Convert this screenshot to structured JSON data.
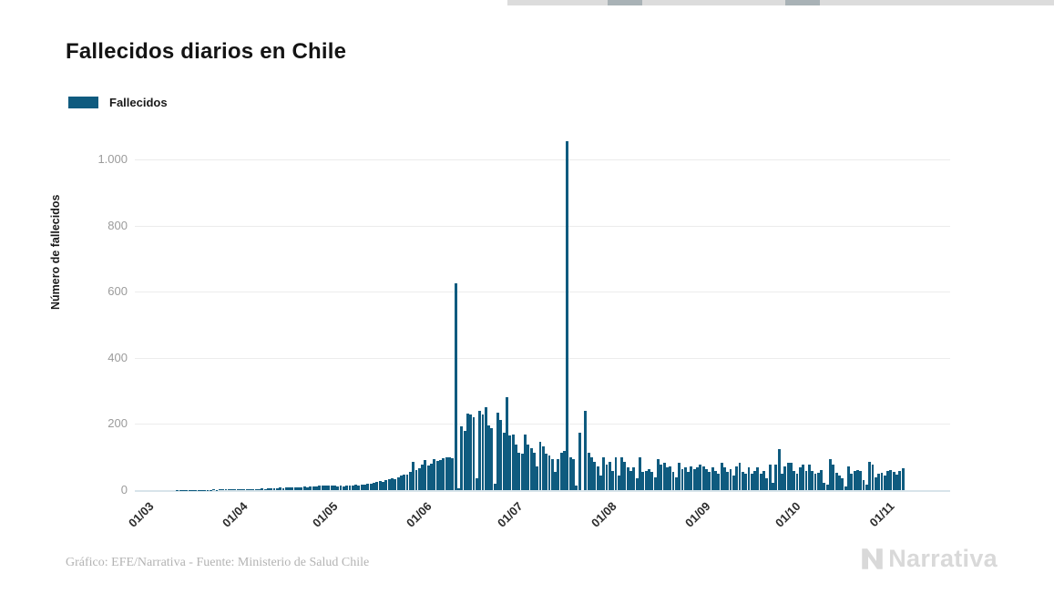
{
  "page": {
    "title": "Fallecidos diarios en Chile",
    "footer_credit": "Gráfico: EFE/Narrativa - Fuente: Ministerio de Salud Chile",
    "brand": "Narrativa"
  },
  "legend": {
    "label": "Fallecidos",
    "color": "#0f5b7f"
  },
  "chart_data": {
    "type": "bar",
    "title": "Fallecidos diarios en Chile",
    "series_name": "Fallecidos",
    "xlabel": "",
    "ylabel": "Número de fallecidos",
    "bar_color": "#0f5b7f",
    "grid": true,
    "legend_position": "top-left",
    "ylim": [
      0,
      1075
    ],
    "yticks": [
      0,
      200,
      400,
      600,
      800,
      1000
    ],
    "ytick_labels": [
      "0",
      "200",
      "400",
      "600",
      "800",
      "1.000"
    ],
    "x_tick_labels": [
      "01/03",
      "01/04",
      "01/05",
      "01/06",
      "01/07",
      "01/08",
      "01/09",
      "01/10",
      "01/11"
    ],
    "x_tick_day_index": [
      0,
      31,
      61,
      92,
      122,
      153,
      184,
      214,
      245
    ],
    "x_start_label": "01/03",
    "values": [
      0,
      0,
      0,
      0,
      0,
      0,
      0,
      0,
      0,
      1,
      1,
      1,
      1,
      1,
      1,
      1,
      1,
      1,
      1,
      1,
      1,
      2,
      1,
      2,
      2,
      2,
      2,
      3,
      2,
      2,
      3,
      3,
      2,
      3,
      4,
      3,
      4,
      5,
      4,
      5,
      6,
      5,
      6,
      7,
      6,
      7,
      8,
      7,
      8,
      9,
      8,
      11,
      9,
      10,
      11,
      12,
      13,
      14,
      13,
      15,
      14,
      13,
      12,
      14,
      12,
      13,
      14,
      15,
      16,
      15,
      17,
      16,
      18,
      20,
      23,
      25,
      27,
      26,
      29,
      32,
      35,
      33,
      38,
      43,
      48,
      46,
      55,
      86,
      60,
      66,
      78,
      90,
      75,
      81,
      95,
      88,
      92,
      96,
      98,
      100,
      96,
      627,
      5,
      192,
      179,
      231,
      228,
      220,
      35,
      239,
      229,
      252,
      197,
      188,
      18,
      234,
      211,
      174,
      280,
      165,
      168,
      138,
      113,
      109,
      169,
      137,
      128,
      114,
      72,
      146,
      132,
      109,
      105,
      95,
      54,
      95,
      114,
      118,
      1057,
      100,
      95,
      13,
      173,
      0,
      240,
      114,
      100,
      86,
      72,
      45,
      100,
      77,
      86,
      59,
      100,
      45,
      100,
      86,
      68,
      59,
      68,
      36,
      100,
      54,
      59,
      63,
      54,
      40,
      95,
      77,
      82,
      68,
      72,
      54,
      40,
      82,
      63,
      68,
      54,
      72,
      63,
      68,
      77,
      72,
      63,
      54,
      68,
      59,
      50,
      82,
      68,
      54,
      63,
      45,
      72,
      82,
      54,
      50,
      68,
      50,
      59,
      68,
      50,
      59,
      36,
      77,
      22,
      77,
      123,
      50,
      72,
      82,
      82,
      59,
      50,
      68,
      77,
      59,
      76,
      58,
      49,
      53,
      62,
      21,
      17,
      94,
      76,
      53,
      44,
      35,
      12,
      72,
      49,
      58,
      62,
      58,
      30,
      17,
      85,
      76,
      40,
      49,
      53,
      44,
      58,
      62,
      55,
      48,
      58,
      66
    ]
  }
}
